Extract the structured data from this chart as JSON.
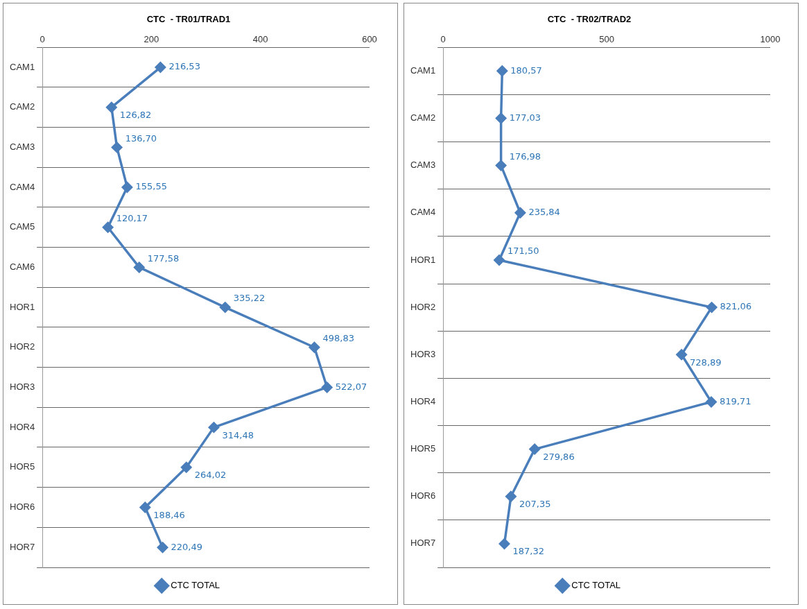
{
  "chart_data": [
    {
      "type": "line",
      "orientation": "horizontal",
      "title": "CTC  - TR01/TRAD1",
      "categories": [
        "CAM1",
        "CAM2",
        "CAM3",
        "CAM4",
        "CAM5",
        "CAM6",
        "HOR1",
        "HOR2",
        "HOR3",
        "HOR4",
        "HOR5",
        "HOR6",
        "HOR7"
      ],
      "series": [
        {
          "name": "CTC TOTAL",
          "color": "#4a7ebb",
          "values": [
            216.53,
            126.82,
            136.7,
            155.55,
            120.17,
            177.58,
            335.22,
            498.83,
            522.07,
            314.48,
            264.02,
            188.46,
            220.49
          ],
          "value_labels": [
            "216,53",
            "126,82",
            "136,70",
            "155,55",
            "120,17",
            "177,58",
            "335,22",
            "498,83",
            "522,07",
            "314,48",
            "264,02",
            "188,46",
            "220,49"
          ]
        }
      ],
      "xlim": [
        0,
        600
      ],
      "xticks": [
        0,
        200,
        400,
        600
      ],
      "grid": "y",
      "legend": "bottom",
      "marker": "diamond"
    },
    {
      "type": "line",
      "orientation": "horizontal",
      "title": "CTC  - TR02/TRAD2",
      "categories": [
        "CAM1",
        "CAM2",
        "CAM3",
        "CAM4",
        "HOR1",
        "HOR2",
        "HOR3",
        "HOR4",
        "HOR5",
        "HOR6",
        "HOR7"
      ],
      "series": [
        {
          "name": "CTC TOTAL",
          "color": "#4a7ebb",
          "values": [
            180.57,
            177.03,
            176.98,
            235.84,
            171.5,
            821.06,
            728.89,
            819.71,
            279.86,
            207.35,
            187.32
          ],
          "value_labels": [
            "180,57",
            "177,03",
            "176,98",
            "235,84",
            "171,50",
            "821,06",
            "728,89",
            "819,71",
            "279,86",
            "207,35",
            "187,32"
          ]
        }
      ],
      "xlim": [
        0,
        1000
      ],
      "xticks": [
        0,
        500,
        1000
      ],
      "grid": "y",
      "legend": "bottom",
      "marker": "diamond"
    }
  ]
}
